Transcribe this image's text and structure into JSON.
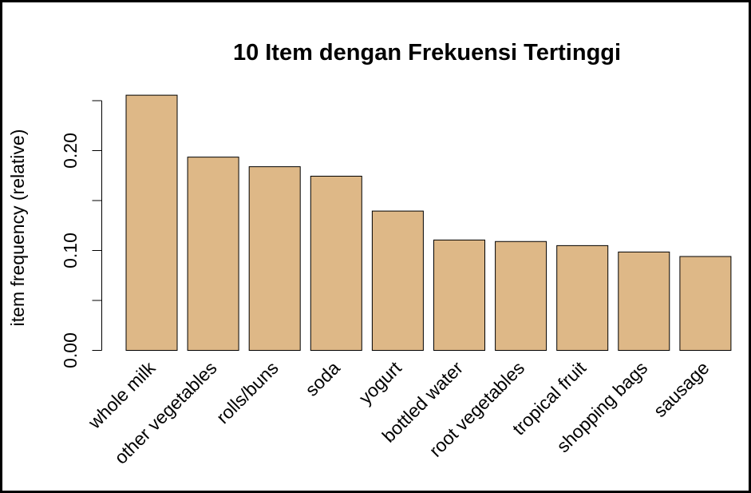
{
  "chart_data": {
    "type": "bar",
    "title": "10 Item dengan Frekuensi Tertinggi",
    "ylabel": "item frequency (relative)",
    "xlabel": "",
    "categories": [
      "whole milk",
      "other vegetables",
      "rolls/buns",
      "soda",
      "yogurt",
      "bottled water",
      "root vegetables",
      "tropical fruit",
      "shopping bags",
      "sausage"
    ],
    "values": [
      0.2555,
      0.1935,
      0.1839,
      0.1744,
      0.1395,
      0.1105,
      0.109,
      0.1049,
      0.0985,
      0.094
    ],
    "yticks": [
      0.0,
      0.05,
      0.1,
      0.15,
      0.2,
      0.25
    ],
    "ytick_labels": [
      "0.00",
      "",
      "0.10",
      "",
      "0.20",
      ""
    ],
    "ylim": [
      0,
      0.25
    ],
    "grid": false,
    "legend": "none",
    "colors": {
      "bar_fill": "#DEB887",
      "bar_stroke": "#000000",
      "frame": "#000000"
    }
  }
}
